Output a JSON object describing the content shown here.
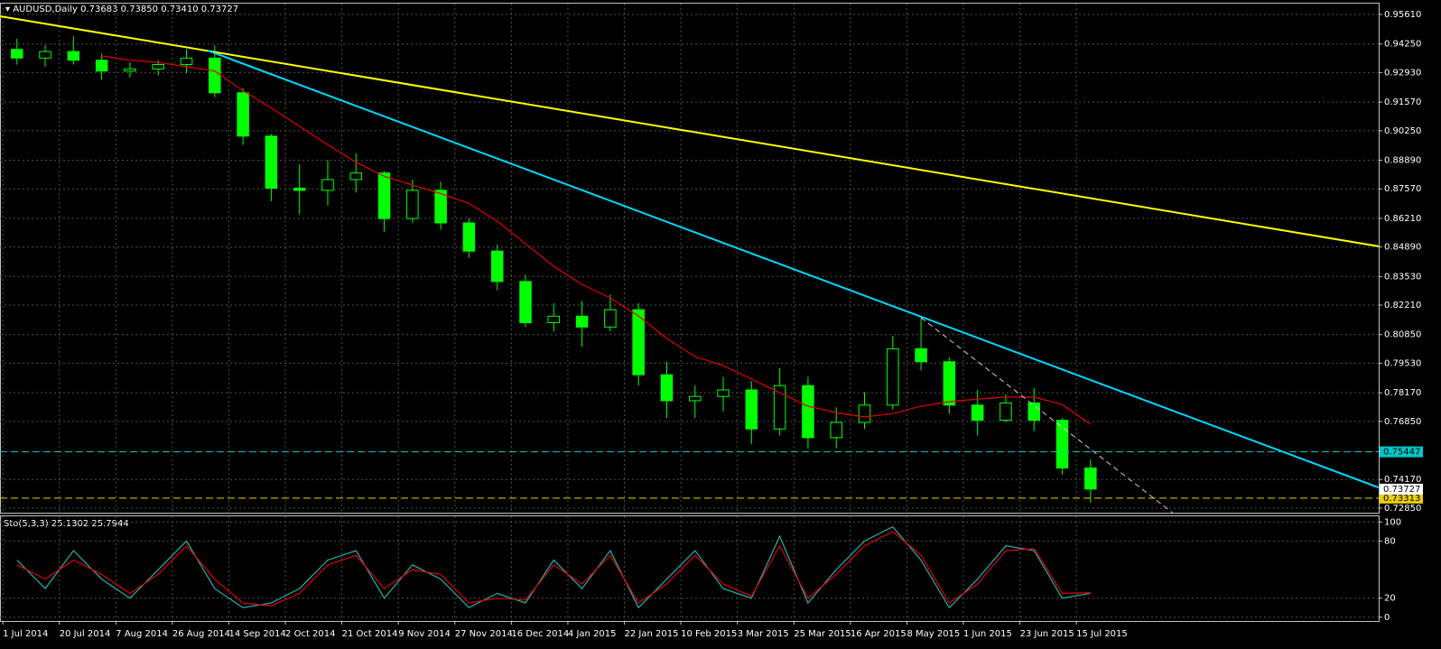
{
  "header": {
    "symbol": "AUDUSD,Daily",
    "ohlc": [
      "0.73683",
      "0.73850",
      "0.73410",
      "0.73727"
    ]
  },
  "chart_data": [
    {
      "type": "candlestick",
      "xlim": [
        -0.6,
        48.2
      ],
      "ylim": [
        0.7264,
        0.9611
      ],
      "grid": true,
      "yticks": [
        {
          "value": 0.9561,
          "label": "0.95610"
        },
        {
          "value": 0.9425,
          "label": "0.94250"
        },
        {
          "value": 0.9293,
          "label": "0.92930"
        },
        {
          "value": 0.9157,
          "label": "0.91570"
        },
        {
          "value": 0.9025,
          "label": "0.90250"
        },
        {
          "value": 0.8889,
          "label": "0.88890"
        },
        {
          "value": 0.8757,
          "label": "0.87570"
        },
        {
          "value": 0.8621,
          "label": "0.86210"
        },
        {
          "value": 0.8489,
          "label": "0.84890"
        },
        {
          "value": 0.8353,
          "label": "0.83530"
        },
        {
          "value": 0.8221,
          "label": "0.82210"
        },
        {
          "value": 0.8085,
          "label": "0.80850"
        },
        {
          "value": 0.7953,
          "label": "0.79530"
        },
        {
          "value": 0.7817,
          "label": "0.78170"
        },
        {
          "value": 0.7685,
          "label": "0.76850"
        },
        {
          "value": 0.7417,
          "label": "0.74170"
        },
        {
          "value": 0.7285,
          "label": "0.72850"
        }
      ],
      "x_labels": [
        "1 Jul 2014",
        "20 Jul 2014",
        "7 Aug 2014",
        "26 Aug 2014",
        "14 Sep 2014",
        "2 Oct 2014",
        "21 Oct 2014",
        "9 Nov 2014",
        "27 Nov 2014",
        "16 Dec 2014",
        "4 Jan 2015",
        "22 Jan 2015",
        "10 Feb 2015",
        "3 Mar 2015",
        "25 Mar 2015",
        "16 Apr 2015",
        "8 May 2015",
        "1 Jun 2015",
        "23 Jun 2015",
        "15 Jul 2015"
      ],
      "candles": {
        "color": "#00ff00",
        "open": [
          0.94,
          0.936,
          0.939,
          0.935,
          0.93,
          0.931,
          0.933,
          0.936,
          0.92,
          0.9,
          0.876,
          0.875,
          0.88,
          0.883,
          0.862,
          0.875,
          0.86,
          0.847,
          0.833,
          0.814,
          0.817,
          0.812,
          0.82,
          0.79,
          0.778,
          0.78,
          0.783,
          0.765,
          0.785,
          0.761,
          0.768,
          0.776,
          0.802,
          0.796,
          0.776,
          0.769,
          0.777,
          0.769,
          0.747
        ],
        "high": [
          0.945,
          0.942,
          0.946,
          0.938,
          0.934,
          0.935,
          0.94,
          0.942,
          0.922,
          0.901,
          0.887,
          0.889,
          0.892,
          0.884,
          0.88,
          0.879,
          0.862,
          0.85,
          0.836,
          0.823,
          0.824,
          0.827,
          0.823,
          0.796,
          0.785,
          0.789,
          0.787,
          0.793,
          0.789,
          0.775,
          0.782,
          0.808,
          0.816,
          0.798,
          0.783,
          0.781,
          0.784,
          0.77,
          0.751
        ],
        "low": [
          0.933,
          0.932,
          0.933,
          0.926,
          0.927,
          0.928,
          0.929,
          0.918,
          0.896,
          0.87,
          0.864,
          0.868,
          0.874,
          0.856,
          0.86,
          0.857,
          0.844,
          0.829,
          0.812,
          0.81,
          0.803,
          0.81,
          0.785,
          0.77,
          0.77,
          0.773,
          0.758,
          0.762,
          0.756,
          0.756,
          0.765,
          0.774,
          0.792,
          0.772,
          0.762,
          0.768,
          0.764,
          0.744,
          0.731
        ],
        "close": [
          0.936,
          0.939,
          0.935,
          0.93,
          0.931,
          0.933,
          0.936,
          0.92,
          0.9,
          0.876,
          0.875,
          0.88,
          0.883,
          0.862,
          0.875,
          0.86,
          0.847,
          0.833,
          0.814,
          0.817,
          0.812,
          0.82,
          0.79,
          0.778,
          0.78,
          0.783,
          0.765,
          0.785,
          0.761,
          0.768,
          0.776,
          0.802,
          0.796,
          0.776,
          0.769,
          0.777,
          0.769,
          0.747,
          0.73727
        ]
      },
      "series": [
        {
          "color": "#e00000",
          "values": [
            null,
            null,
            null,
            0.937,
            0.935,
            0.934,
            0.932,
            0.93,
            0.921,
            0.913,
            0.9045,
            0.896,
            0.888,
            0.8815,
            0.8775,
            0.8735,
            0.869,
            0.8608,
            0.8504,
            0.84,
            0.8317,
            0.8254,
            0.8171,
            0.8067,
            0.7984,
            0.7942,
            0.788,
            0.7817,
            0.7755,
            0.7726,
            0.7705,
            0.7721,
            0.7755,
            0.7776,
            0.7788,
            0.7797,
            0.7797,
            0.7763,
            0.7672
          ]
        }
      ],
      "trend_lines": [
        {
          "color": "#ffff00",
          "width": 2,
          "x": [
            -0.6,
            48.2
          ],
          "y": [
            0.9553,
            0.8492
          ]
        },
        {
          "color": "#00d8ff",
          "width": 2,
          "x": [
            6.75,
            48.2
          ],
          "y": [
            0.9395,
            0.738
          ]
        },
        {
          "color": "#e8b8e8",
          "width": 1,
          "dash": true,
          "x": [
            32.0,
            40.9
          ],
          "y": [
            0.8163,
            0.7264
          ]
        }
      ],
      "levels": [
        {
          "value": 0.75447,
          "color": "#00c8c8"
        },
        {
          "value": 0.73313,
          "color": "#e8d000"
        }
      ]
    },
    {
      "type": "stochastic",
      "title": "Sto(5,3,3)",
      "xlim": [
        -0.6,
        48.2
      ],
      "ylim": [
        -4,
        106
      ],
      "grid": true,
      "yticks": [
        0,
        20,
        80,
        100
      ],
      "series": [
        {
          "color": "#20b2aa",
          "values": [
            60,
            30,
            70,
            40,
            20,
            50,
            80,
            30,
            10,
            15,
            30,
            60,
            70,
            20,
            55,
            40,
            10,
            25,
            15,
            60,
            30,
            70,
            10,
            40,
            70,
            30,
            20,
            85,
            15,
            50,
            80,
            95,
            60,
            10,
            40,
            75,
            70,
            20,
            25.1302
          ]
        },
        {
          "color": "#e00000",
          "values": [
            55,
            40,
            60,
            45,
            25,
            45,
            75,
            40,
            15,
            12,
            25,
            55,
            65,
            30,
            50,
            45,
            15,
            20,
            18,
            55,
            35,
            65,
            15,
            35,
            65,
            35,
            22,
            75,
            20,
            45,
            75,
            90,
            65,
            15,
            35,
            70,
            72,
            25,
            25.7944
          ]
        }
      ]
    }
  ]
}
